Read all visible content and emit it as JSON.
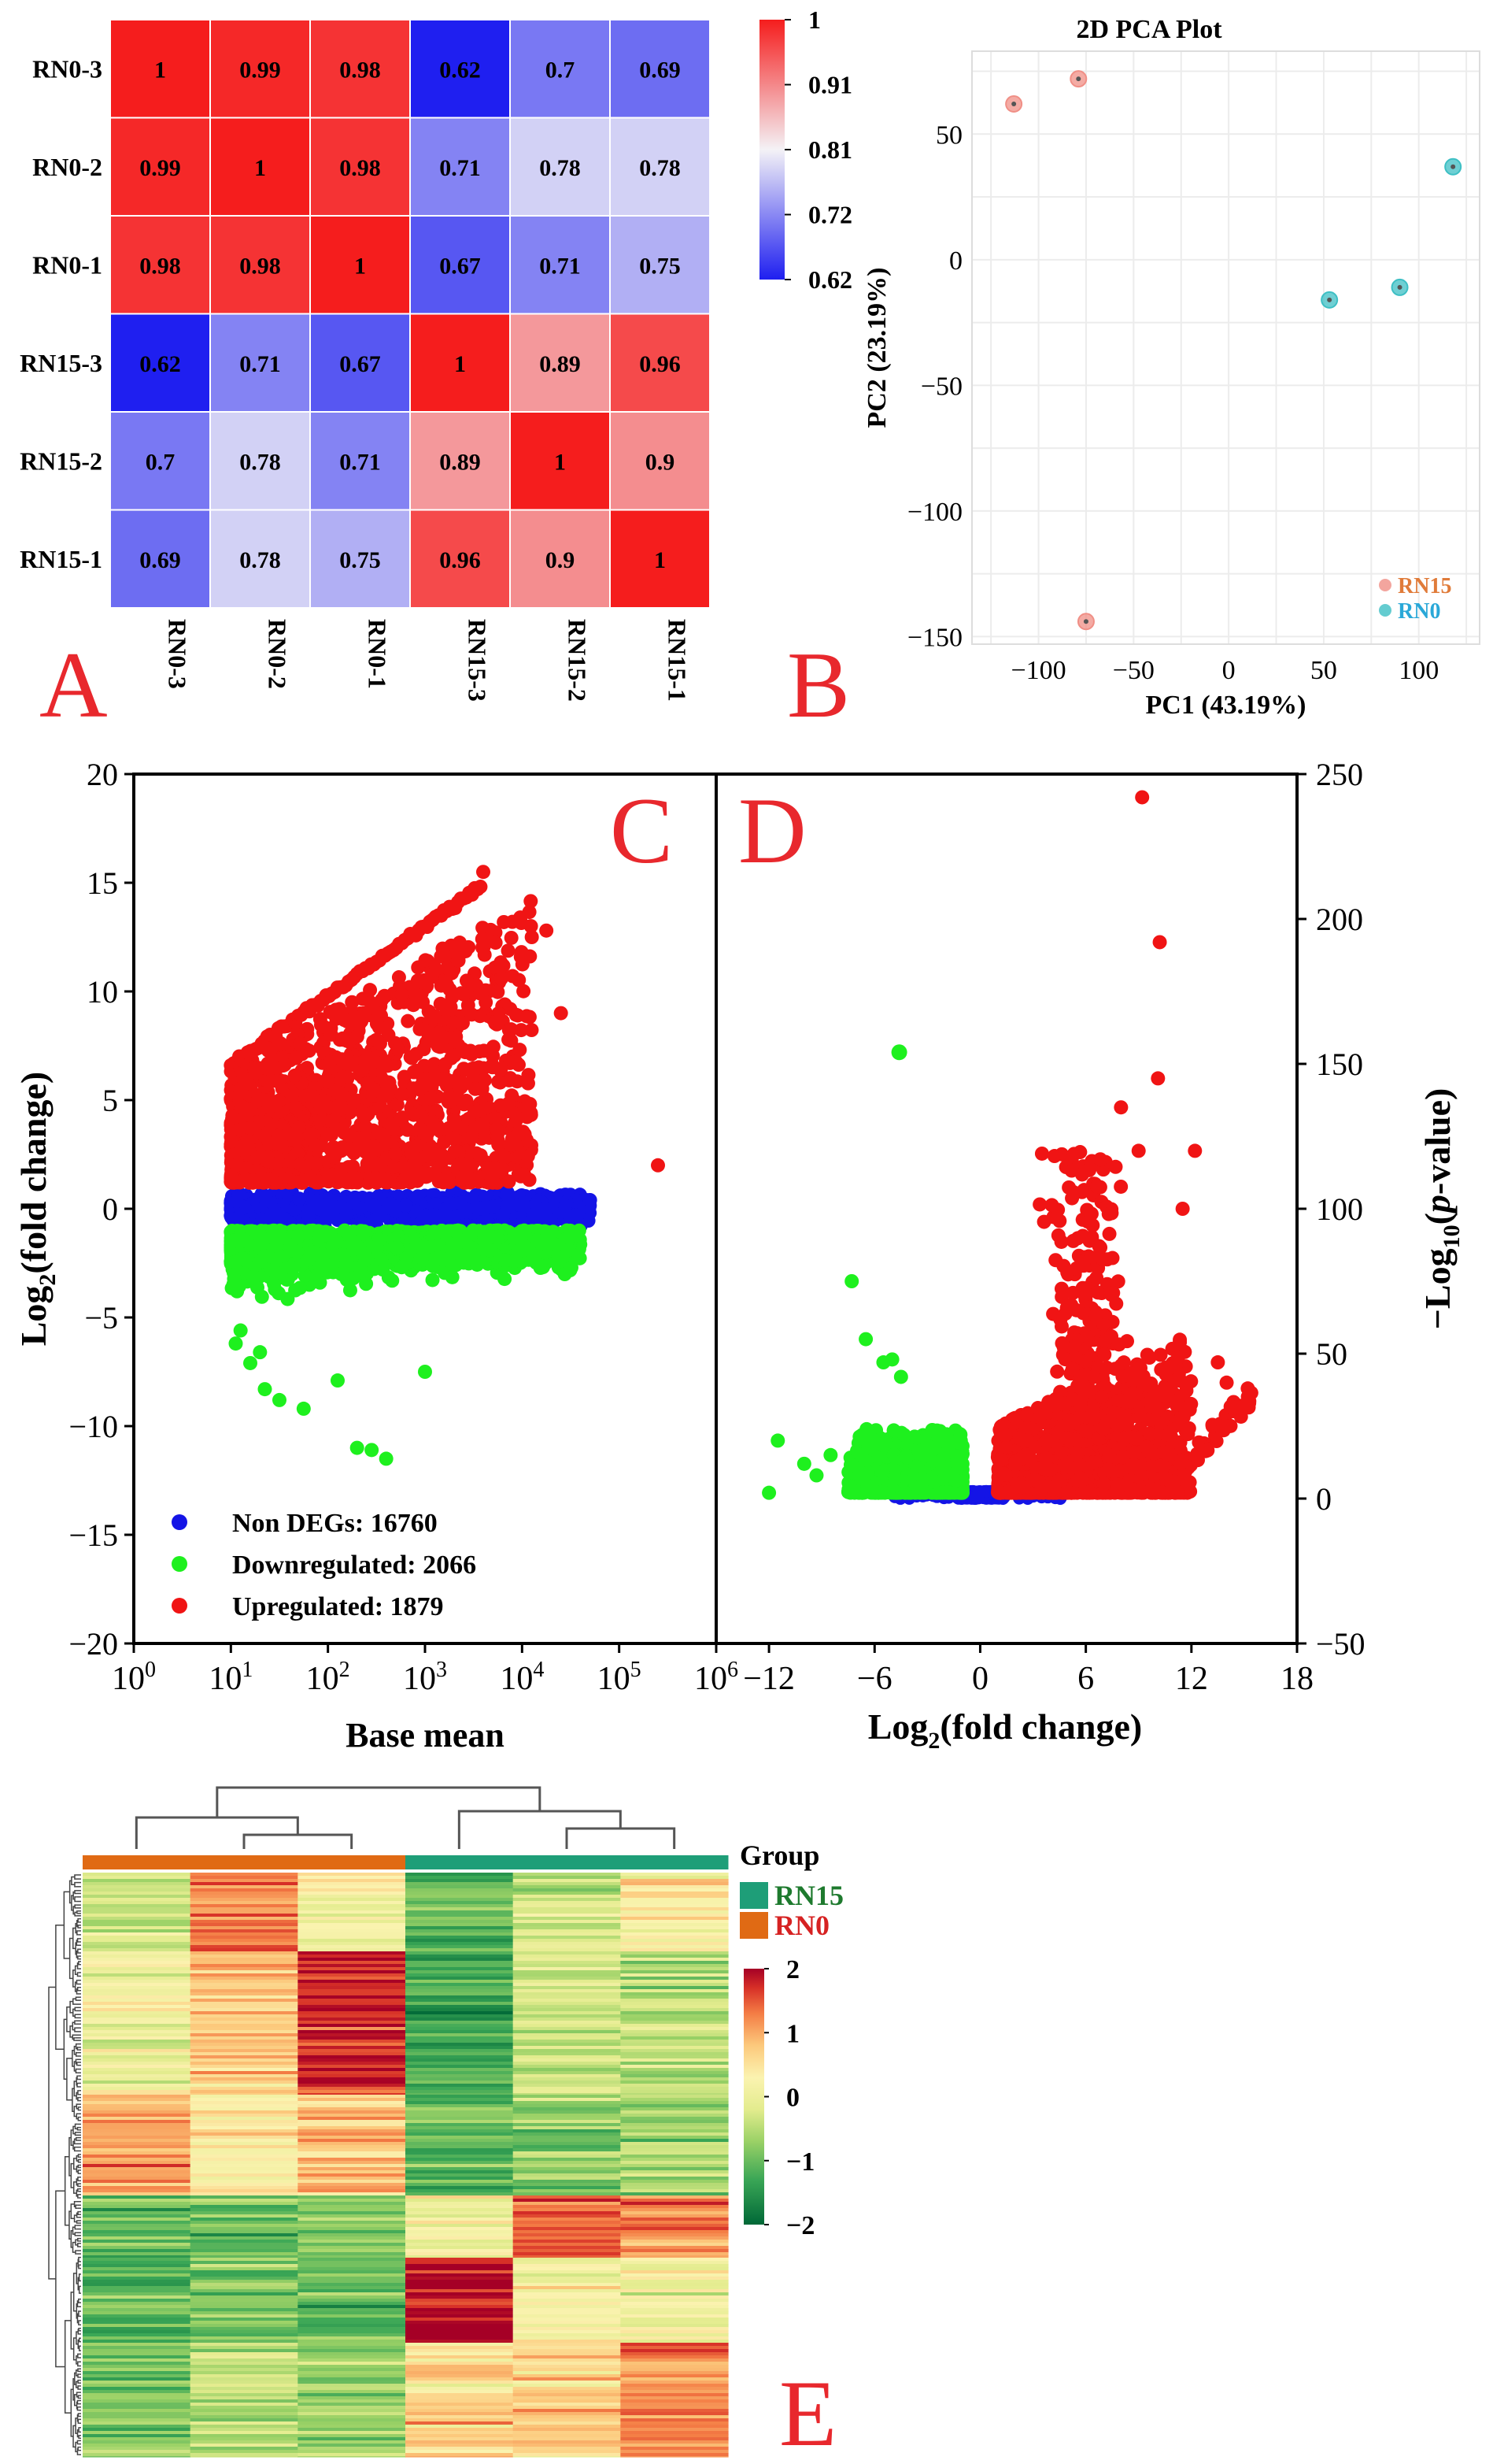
{
  "panel_letters": {
    "a": "A",
    "b": "B",
    "c": "C",
    "d": "D",
    "e": "E"
  },
  "chart_data": [
    {
      "id": "A",
      "type": "heatmap",
      "title": "",
      "rows": [
        "RN0-3",
        "RN0-2",
        "RN0-1",
        "RN15-3",
        "RN15-2",
        "RN15-1"
      ],
      "cols": [
        "RN0-3",
        "RN0-2",
        "RN0-1",
        "RN15-3",
        "RN15-2",
        "RN15-1"
      ],
      "values": [
        [
          1,
          0.99,
          0.98,
          0.62,
          0.7,
          0.69
        ],
        [
          0.99,
          1,
          0.98,
          0.71,
          0.78,
          0.78
        ],
        [
          0.98,
          0.98,
          1,
          0.67,
          0.71,
          0.75
        ],
        [
          0.62,
          0.71,
          0.67,
          1,
          0.89,
          0.96
        ],
        [
          0.7,
          0.78,
          0.71,
          0.89,
          1,
          0.9
        ],
        [
          0.69,
          0.78,
          0.75,
          0.96,
          0.9,
          1
        ]
      ],
      "labels": [
        [
          "1",
          "0.99",
          "0.98",
          "0.62",
          "0.7",
          "0.69"
        ],
        [
          "0.99",
          "1",
          "0.98",
          "0.71",
          "0.78",
          "0.78"
        ],
        [
          "0.98",
          "0.98",
          "1",
          "0.67",
          "0.71",
          "0.75"
        ],
        [
          "0.62",
          "0.71",
          "0.67",
          "1",
          "0.89",
          "0.96"
        ],
        [
          "0.7",
          "0.78",
          "0.71",
          "0.89",
          "1",
          "0.9"
        ],
        [
          "0.69",
          "0.78",
          "0.75",
          "0.96",
          "0.9",
          "1"
        ]
      ],
      "color_range": [
        0.62,
        1
      ],
      "colorbar_ticks": [
        {
          "value": 1,
          "label": "1"
        },
        {
          "value": 0.905,
          "label": "0.91"
        },
        {
          "value": 0.81,
          "label": "0.81"
        },
        {
          "value": 0.715,
          "label": "0.72"
        },
        {
          "value": 0.62,
          "label": "0.62"
        }
      ],
      "colors": {
        "low": "#1f1ff0",
        "mid": "#f4f2f6",
        "high": "#f51d1d"
      }
    },
    {
      "id": "B",
      "type": "scatter",
      "title": "2D PCA Plot",
      "xlabel": "PC1 (43.19%)",
      "ylabel": "PC2 (23.19%)",
      "xlim": [
        -135,
        132
      ],
      "ylim": [
        -153,
        83
      ],
      "xticks": [
        -100,
        -50,
        0,
        50,
        100
      ],
      "yticks": [
        50,
        0,
        -50,
        -100,
        -150
      ],
      "grid": true,
      "legend_position": "bottom-right",
      "series": [
        {
          "name": "RN15",
          "color": "#f08f86",
          "legend_color": "#e07b39",
          "points": [
            [
              -113,
              62
            ],
            [
              -79,
              72
            ],
            [
              -75,
              -144
            ]
          ]
        },
        {
          "name": "RN0",
          "color": "#3dbfc4",
          "legend_color": "#2aa8d8",
          "points": [
            [
              53,
              -16
            ],
            [
              90,
              -11
            ],
            [
              118,
              37
            ]
          ]
        }
      ]
    },
    {
      "id": "C",
      "type": "scatter",
      "title": "",
      "xlabel": "Base mean",
      "ylabel_main": "Log",
      "ylabel_sub": "2",
      "ylabel_rest": "(fold change)",
      "xscale": "log10",
      "xlim_exp": [
        0,
        6
      ],
      "ylim": [
        -20,
        20
      ],
      "yticks": [
        20,
        15,
        10,
        5,
        0,
        -5,
        -10,
        -15,
        -20
      ],
      "xtick_base": "10",
      "xtick_exps": [
        "0",
        "1",
        "2",
        "3",
        "4",
        "5",
        "6"
      ],
      "legend_position": "bottom-left",
      "series": [
        {
          "name": "Non DEGs",
          "count": 16760,
          "label": "Non DEGs: 16760",
          "color": "#1414e6"
        },
        {
          "name": "Downregulated",
          "count": 2066,
          "label": "Downregulated: 2066",
          "color": "#1ef01e"
        },
        {
          "name": "Upregulated",
          "count": 1879,
          "label": "Upregulated: 1879",
          "color": "#f01414"
        }
      ]
    },
    {
      "id": "D",
      "type": "scatter",
      "title": "",
      "xlabel_main": "Log",
      "xlabel_sub": "2",
      "xlabel_rest": "(fold change)",
      "ylabel_main": "−Log",
      "ylabel_sub": "10",
      "ylabel_rest": "(",
      "ylabel_ital": "p",
      "ylabel_end": "-value)",
      "xlim": [
        -15,
        18
      ],
      "ylim": [
        -50,
        250
      ],
      "xticks": [
        -12,
        -6,
        0,
        6,
        12,
        18
      ],
      "xtick_labels": [
        "−12",
        "−6",
        "0",
        "6",
        "12",
        "18"
      ],
      "yticks": [
        250,
        200,
        150,
        100,
        50,
        0,
        -50
      ],
      "ytick_labels": [
        "250",
        "200",
        "150",
        "100",
        "50",
        "0",
        "−50"
      ],
      "series": [
        {
          "name": "Non DEGs",
          "color": "#1414e6"
        },
        {
          "name": "Downregulated",
          "color": "#1ef01e"
        },
        {
          "name": "Upregulated",
          "color": "#f01414"
        }
      ]
    },
    {
      "id": "E",
      "type": "heatmap",
      "title": "",
      "legend_title": "Group",
      "groups": [
        {
          "name": "RN15",
          "color": "#1e9e78",
          "text_color": "#1e7a2e"
        },
        {
          "name": "RN0",
          "color": "#e06a14",
          "text_color": "#d62222"
        }
      ],
      "column_groups": [
        "RN0",
        "RN0",
        "RN0",
        "RN15",
        "RN15",
        "RN15"
      ],
      "color_range": [
        -2,
        2
      ],
      "colorbar_ticks": [
        {
          "value": 2,
          "label": "2"
        },
        {
          "value": 1,
          "label": "1"
        },
        {
          "value": 0,
          "label": "0"
        },
        {
          "value": -1,
          "label": "−1"
        },
        {
          "value": -2,
          "label": "−2"
        }
      ],
      "block_means": [
        [
          -0.3,
          1.3,
          0.2,
          -1.0,
          -0.4,
          0.4
        ],
        [
          0.1,
          0.8,
          1.8,
          -1.2,
          -0.3,
          -0.5
        ],
        [
          1.1,
          0.4,
          0.9,
          -1.1,
          -0.8,
          -0.6
        ],
        [
          -1.0,
          -1.0,
          -0.8,
          0.1,
          1.6,
          1.2
        ],
        [
          -1.1,
          -0.9,
          -1.0,
          1.9,
          0.2,
          0.0
        ],
        [
          -0.8,
          -0.5,
          -0.7,
          0.6,
          0.7,
          1.2
        ]
      ]
    }
  ]
}
